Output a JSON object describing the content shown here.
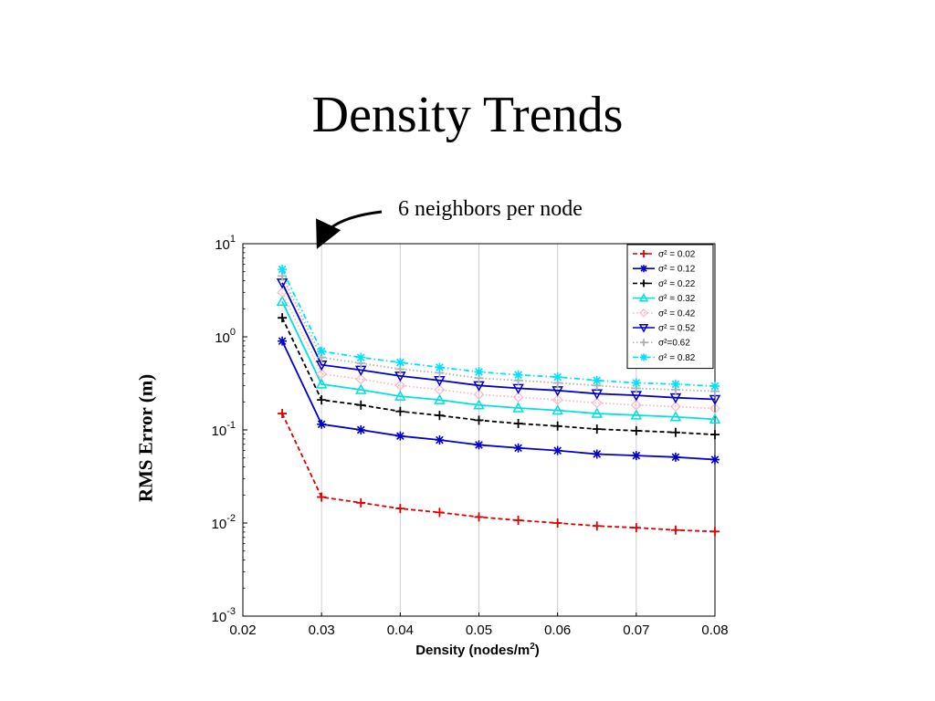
{
  "slide": {
    "title": "Density Trends",
    "annotation": "6 neighbors per node"
  },
  "chart_data": {
    "type": "line",
    "xlabel_text": "Density (nodes/m",
    "xlabel_sup": "2",
    "xlabel_tail": ")",
    "ylabel": "RMS Error (m)",
    "xlim": [
      0.02,
      0.08
    ],
    "ylim": [
      0.001,
      10
    ],
    "yscale": "log",
    "grid": "vertical",
    "legend_position": "top-right",
    "x_ticks": [
      "0.02",
      "0.03",
      "0.04",
      "0.05",
      "0.06",
      "0.07",
      "0.08"
    ],
    "y_ticks": [
      {
        "value": 10,
        "base": "10",
        "exp": "1"
      },
      {
        "value": 1,
        "base": "10",
        "exp": "0"
      },
      {
        "value": 0.1,
        "base": "10",
        "exp": "-1"
      },
      {
        "value": 0.01,
        "base": "10",
        "exp": "-2"
      },
      {
        "value": 0.001,
        "base": "10",
        "exp": "-3"
      }
    ],
    "x": [
      0.025,
      0.03,
      0.035,
      0.04,
      0.045,
      0.05,
      0.055,
      0.06,
      0.065,
      0.07,
      0.075,
      0.08
    ],
    "series": [
      {
        "name": "σ² = 0.02",
        "color": "#e00000",
        "dash": "dashed",
        "marker": "plus",
        "values": [
          0.15,
          0.019,
          0.0165,
          0.0143,
          0.013,
          0.0116,
          0.0107,
          0.01,
          0.0093,
          0.0089,
          0.0084,
          0.0081
        ]
      },
      {
        "name": "σ² = 0.12",
        "color": "#0000cc",
        "dash": "solid",
        "marker": "star",
        "values": [
          0.9,
          0.115,
          0.1,
          0.086,
          0.078,
          0.069,
          0.064,
          0.06,
          0.055,
          0.053,
          0.051,
          0.048
        ]
      },
      {
        "name": "σ² = 0.22",
        "color": "#000000",
        "dash": "dashed",
        "marker": "plus",
        "values": [
          1.6,
          0.21,
          0.185,
          0.158,
          0.143,
          0.127,
          0.117,
          0.11,
          0.102,
          0.098,
          0.094,
          0.089
        ]
      },
      {
        "name": "σ² = 0.32",
        "color": "#00e0e0",
        "dash": "solid",
        "marker": "triangle-up",
        "values": [
          2.4,
          0.31,
          0.27,
          0.23,
          0.21,
          0.185,
          0.172,
          0.162,
          0.15,
          0.144,
          0.138,
          0.13
        ]
      },
      {
        "name": "σ² = 0.42",
        "color": "#ffb6c1",
        "dash": "dotted",
        "marker": "diamond",
        "values": [
          3.0,
          0.4,
          0.35,
          0.3,
          0.27,
          0.24,
          0.225,
          0.21,
          0.195,
          0.185,
          0.178,
          0.17
        ]
      },
      {
        "name": "σ² = 0.52",
        "color": "#0000cc",
        "dash": "solid",
        "marker": "triangle-down",
        "values": [
          3.8,
          0.5,
          0.44,
          0.38,
          0.34,
          0.3,
          0.28,
          0.265,
          0.245,
          0.235,
          0.222,
          0.213
        ]
      },
      {
        "name": "σ²=0.62",
        "color": "#b0b0b0",
        "dash": "dotted",
        "marker": "plus",
        "values": [
          4.5,
          0.6,
          0.52,
          0.45,
          0.41,
          0.36,
          0.34,
          0.32,
          0.3,
          0.28,
          0.27,
          0.26
        ]
      },
      {
        "name": "σ² = 0.82",
        "color": "#00e0ff",
        "dash": "dashdot",
        "marker": "star",
        "values": [
          5.3,
          0.7,
          0.6,
          0.53,
          0.47,
          0.42,
          0.39,
          0.37,
          0.34,
          0.32,
          0.31,
          0.295
        ]
      }
    ]
  }
}
